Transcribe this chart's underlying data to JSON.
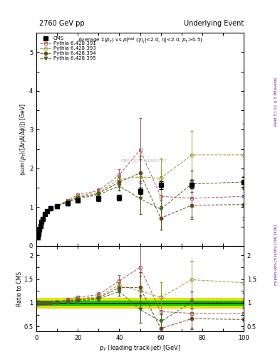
{
  "title_left": "2760 GeV pp",
  "title_right": "Underlying Event",
  "plot_title": "Average $\\Sigma(p_T)$ vs $p_T^{lead}$ ($|\\eta_j|$<2.0, $\\eta|$<2.0, $p_T$>0.5)",
  "ylabel_main": "$\\langle$sum$(p_T)/[\\Delta\\eta\\Delta(\\Delta\\phi)]\\rangle$ [GeV]",
  "ylabel_ratio": "Ratio to CMS",
  "xlabel": "$p_T$ (leading track-jet) [GeV]",
  "watermark": "CMS_2015_I1385737",
  "rivet_label": "Rivet 3.1.10, ≥ 3.3M events",
  "arxiv_label": "mcplots.cern.ch [arXiv:1306.3436]",
  "xlim": [
    0,
    100
  ],
  "ylim_main": [
    0,
    5.5
  ],
  "ylim_ratio": [
    0.4,
    2.2
  ],
  "yticks_main": [
    0,
    1,
    2,
    3,
    4,
    5
  ],
  "yticks_ratio": [
    0.5,
    1.0,
    1.5,
    2.0
  ],
  "cms_x": [
    0.5,
    1.0,
    1.5,
    2.0,
    2.5,
    3.0,
    4.0,
    5.0,
    7.0,
    10.0,
    15.0,
    20.0,
    30.0,
    40.0,
    50.0,
    60.0,
    75.0,
    100.0
  ],
  "cms_y": [
    0.22,
    0.32,
    0.42,
    0.52,
    0.62,
    0.7,
    0.82,
    0.9,
    0.98,
    1.02,
    1.1,
    1.18,
    1.22,
    1.25,
    1.42,
    1.57,
    1.58,
    1.65
  ],
  "cms_yerr": [
    0.02,
    0.02,
    0.03,
    0.03,
    0.03,
    0.04,
    0.04,
    0.04,
    0.04,
    0.04,
    0.05,
    0.05,
    0.06,
    0.07,
    0.08,
    0.1,
    0.1,
    0.12
  ],
  "p391_x": [
    0.5,
    1.0,
    1.5,
    2.0,
    2.5,
    3.0,
    4.0,
    5.0,
    7.0,
    10.0,
    15.0,
    20.0,
    30.0,
    40.0,
    50.0,
    60.0,
    75.0,
    100.0
  ],
  "p391_y": [
    0.22,
    0.32,
    0.42,
    0.52,
    0.62,
    0.7,
    0.82,
    0.9,
    0.98,
    1.03,
    1.18,
    1.32,
    1.43,
    1.83,
    2.48,
    1.28,
    1.23,
    1.28
  ],
  "p391_yerr": [
    0.01,
    0.01,
    0.01,
    0.01,
    0.01,
    0.01,
    0.01,
    0.01,
    0.01,
    0.02,
    0.03,
    0.04,
    0.06,
    0.15,
    0.82,
    0.52,
    0.47,
    0.52
  ],
  "p393_x": [
    0.5,
    1.0,
    1.5,
    2.0,
    2.5,
    3.0,
    4.0,
    5.0,
    7.0,
    10.0,
    15.0,
    20.0,
    30.0,
    40.0,
    50.0,
    60.0,
    75.0,
    100.0
  ],
  "p393_y": [
    0.22,
    0.32,
    0.42,
    0.52,
    0.62,
    0.7,
    0.82,
    0.9,
    0.98,
    1.03,
    1.15,
    1.28,
    1.38,
    1.72,
    1.78,
    1.75,
    2.35,
    2.35
  ],
  "p393_yerr": [
    0.01,
    0.01,
    0.01,
    0.01,
    0.01,
    0.01,
    0.01,
    0.01,
    0.01,
    0.02,
    0.03,
    0.04,
    0.06,
    0.12,
    0.45,
    0.5,
    0.62,
    0.8
  ],
  "p394_x": [
    0.5,
    1.0,
    1.5,
    2.0,
    2.5,
    3.0,
    4.0,
    5.0,
    7.0,
    10.0,
    15.0,
    20.0,
    30.0,
    40.0,
    50.0,
    60.0,
    75.0,
    100.0
  ],
  "p394_y": [
    0.22,
    0.32,
    0.42,
    0.52,
    0.62,
    0.7,
    0.82,
    0.9,
    0.98,
    1.03,
    1.14,
    1.25,
    1.35,
    1.65,
    1.88,
    0.72,
    1.05,
    1.07
  ],
  "p394_yerr": [
    0.01,
    0.01,
    0.01,
    0.01,
    0.01,
    0.01,
    0.01,
    0.01,
    0.01,
    0.02,
    0.03,
    0.04,
    0.06,
    0.12,
    0.45,
    0.3,
    0.35,
    0.4
  ],
  "p395_x": [
    0.5,
    1.0,
    1.5,
    2.0,
    2.5,
    3.0,
    4.0,
    5.0,
    7.0,
    10.0,
    15.0,
    20.0,
    30.0,
    40.0,
    50.0,
    60.0,
    75.0,
    100.0
  ],
  "p395_y": [
    0.22,
    0.32,
    0.42,
    0.52,
    0.62,
    0.7,
    0.82,
    0.9,
    0.98,
    1.03,
    1.13,
    1.22,
    1.32,
    1.55,
    1.22,
    0.95,
    1.6,
    1.65
  ],
  "p395_yerr": [
    0.01,
    0.01,
    0.01,
    0.01,
    0.01,
    0.01,
    0.01,
    0.01,
    0.01,
    0.02,
    0.03,
    0.04,
    0.06,
    0.12,
    0.4,
    0.25,
    0.35,
    0.35
  ],
  "color_391": "#aa5566",
  "color_393": "#999933",
  "color_394": "#664422",
  "color_395": "#446622",
  "color_cms": "#000000",
  "band_inner_color": "#00bb00",
  "band_outer_color": "#dddd00"
}
